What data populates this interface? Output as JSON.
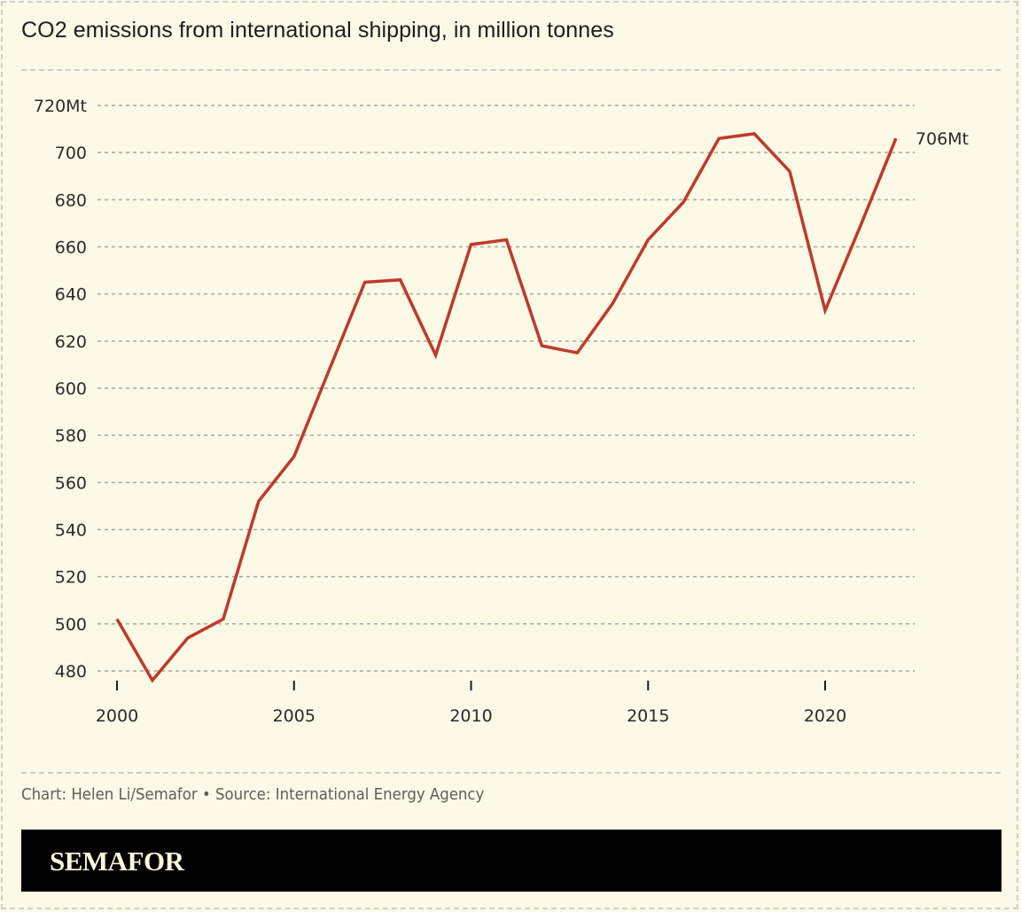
{
  "title": "CO2 emissions from international shipping, in million tonnes",
  "source": "Chart: Helen Li/Semafor • Source: International Energy Agency",
  "brand": "SEMAFOR",
  "colors": {
    "background": "#fcf9e6",
    "line": "#c0392b",
    "grid": "#a8a89e",
    "text": "#2a2a2a"
  },
  "chart_data": {
    "type": "line",
    "title": "CO2 emissions from international shipping, in million tonnes",
    "xlabel": "",
    "ylabel": "",
    "x": [
      2000,
      2001,
      2002,
      2003,
      2004,
      2005,
      2006,
      2007,
      2008,
      2009,
      2010,
      2011,
      2012,
      2013,
      2014,
      2015,
      2016,
      2017,
      2018,
      2019,
      2020,
      2021,
      2022
    ],
    "series": [
      {
        "name": "CO2 emissions (Mt)",
        "values": [
          502,
          476,
          494,
          502,
          552,
          571,
          608,
          645,
          646,
          614,
          661,
          663,
          618,
          615,
          636,
          663,
          679,
          706,
          708,
          692,
          633,
          669,
          706
        ]
      }
    ],
    "ylim": [
      476,
      720
    ],
    "xlim": [
      2000,
      2022
    ],
    "yticks": [
      480,
      500,
      520,
      540,
      560,
      580,
      600,
      620,
      640,
      660,
      680,
      700,
      720
    ],
    "ytick_labels": [
      "480",
      "500",
      "520",
      "540",
      "560",
      "580",
      "600",
      "620",
      "640",
      "660",
      "680",
      "700",
      "720Mt"
    ],
    "xticks": [
      2000,
      2005,
      2010,
      2015,
      2020
    ],
    "xtick_labels": [
      "2000",
      "2005",
      "2010",
      "2015",
      "2020"
    ],
    "annotations": [
      {
        "x": 2022,
        "y": 706,
        "text": "706Mt"
      }
    ],
    "grid": true,
    "legend": "none"
  }
}
